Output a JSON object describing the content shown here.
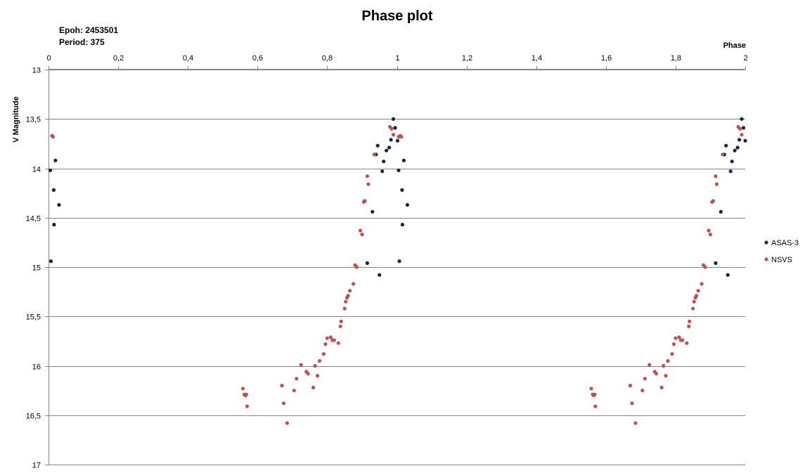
{
  "chart_data": {
    "type": "scatter",
    "title": "Phase plot",
    "annotations": [
      "Epoh: 2453501",
      "Period: 375"
    ],
    "xlabel": "Phase",
    "ylabel": "V Magnitude",
    "xlim": [
      0,
      2
    ],
    "ylim": [
      13,
      17
    ],
    "y_inverted": true,
    "x_axis_position": "top",
    "x_ticks": [
      0,
      0.2,
      0.4,
      0.6,
      0.8,
      1,
      1.2,
      1.4,
      1.6,
      1.8,
      2
    ],
    "x_tick_labels": [
      "0",
      "0,2",
      "0,4",
      "0,6",
      "0,8",
      "1",
      "1,2",
      "1,4",
      "1,6",
      "1,8",
      "2"
    ],
    "y_ticks": [
      13,
      13.5,
      14,
      14.5,
      15,
      15.5,
      16,
      16.5,
      17
    ],
    "y_tick_labels": [
      "13",
      "13,5",
      "14",
      "14,5",
      "15",
      "15,5",
      "16",
      "16,5",
      "17"
    ],
    "grid": "horizontal",
    "legend_position": "right",
    "series": [
      {
        "name": "ASAS-3",
        "color": "#0f2346",
        "points": [
          [
            0.005,
            14.02
          ],
          [
            0.007,
            14.94
          ],
          [
            0.015,
            14.22
          ],
          [
            0.016,
            14.57
          ],
          [
            0.02,
            13.92
          ],
          [
            0.03,
            14.37
          ],
          [
            0.915,
            14.96
          ],
          [
            0.93,
            14.44
          ],
          [
            0.94,
            13.86
          ],
          [
            0.945,
            13.77
          ],
          [
            0.95,
            15.08
          ],
          [
            0.958,
            14.03
          ],
          [
            0.962,
            13.93
          ],
          [
            0.97,
            13.82
          ],
          [
            0.978,
            13.79
          ],
          [
            0.983,
            13.71
          ],
          [
            0.99,
            13.5
          ],
          [
            0.995,
            13.59
          ],
          [
            1.002,
            13.72
          ],
          [
            1.005,
            14.02
          ],
          [
            1.007,
            14.94
          ],
          [
            1.015,
            14.22
          ],
          [
            1.016,
            14.57
          ],
          [
            1.02,
            13.92
          ],
          [
            1.03,
            14.37
          ],
          [
            1.915,
            14.96
          ],
          [
            1.93,
            14.44
          ],
          [
            1.94,
            13.86
          ],
          [
            1.945,
            13.77
          ],
          [
            1.95,
            15.08
          ],
          [
            1.958,
            14.03
          ],
          [
            1.962,
            13.93
          ],
          [
            1.97,
            13.82
          ],
          [
            1.978,
            13.79
          ],
          [
            1.983,
            13.71
          ],
          [
            1.99,
            13.5
          ],
          [
            1.995,
            13.59
          ],
          [
            2.0,
            13.72
          ]
        ]
      },
      {
        "name": "NSVS",
        "color": "#c0504d",
        "points": [
          [
            0.01,
            13.67
          ],
          [
            0.013,
            13.68
          ],
          [
            0.558,
            16.23
          ],
          [
            0.562,
            16.29
          ],
          [
            0.565,
            16.3
          ],
          [
            0.568,
            16.29
          ],
          [
            0.57,
            16.41
          ],
          [
            0.67,
            16.2
          ],
          [
            0.675,
            16.38
          ],
          [
            0.685,
            16.58
          ],
          [
            0.705,
            16.25
          ],
          [
            0.712,
            16.13
          ],
          [
            0.725,
            15.99
          ],
          [
            0.74,
            16.06
          ],
          [
            0.745,
            16.08
          ],
          [
            0.76,
            16.22
          ],
          [
            0.765,
            16.0
          ],
          [
            0.772,
            16.1
          ],
          [
            0.778,
            15.95
          ],
          [
            0.79,
            15.88
          ],
          [
            0.795,
            15.78
          ],
          [
            0.8,
            15.72
          ],
          [
            0.81,
            15.71
          ],
          [
            0.815,
            15.74
          ],
          [
            0.82,
            15.74
          ],
          [
            0.832,
            15.77
          ],
          [
            0.838,
            15.6
          ],
          [
            0.84,
            15.55
          ],
          [
            0.85,
            15.42
          ],
          [
            0.853,
            15.35
          ],
          [
            0.857,
            15.31
          ],
          [
            0.86,
            15.29
          ],
          [
            0.865,
            15.24
          ],
          [
            0.875,
            15.17
          ],
          [
            0.88,
            14.98
          ],
          [
            0.885,
            15.0
          ],
          [
            0.895,
            14.63
          ],
          [
            0.9,
            14.67
          ],
          [
            0.905,
            14.34
          ],
          [
            0.908,
            14.33
          ],
          [
            0.915,
            14.08
          ],
          [
            0.918,
            14.16
          ],
          [
            0.935,
            13.86
          ],
          [
            0.98,
            13.58
          ],
          [
            0.985,
            13.6
          ],
          [
            0.99,
            13.66
          ],
          [
            1.005,
            13.68
          ],
          [
            1.01,
            13.67
          ],
          [
            1.013,
            13.68
          ],
          [
            1.558,
            16.23
          ],
          [
            1.562,
            16.29
          ],
          [
            1.565,
            16.3
          ],
          [
            1.568,
            16.29
          ],
          [
            1.57,
            16.41
          ],
          [
            1.67,
            16.2
          ],
          [
            1.675,
            16.38
          ],
          [
            1.685,
            16.58
          ],
          [
            1.705,
            16.25
          ],
          [
            1.712,
            16.13
          ],
          [
            1.725,
            15.99
          ],
          [
            1.74,
            16.06
          ],
          [
            1.745,
            16.08
          ],
          [
            1.76,
            16.22
          ],
          [
            1.765,
            16.0
          ],
          [
            1.772,
            16.1
          ],
          [
            1.778,
            15.95
          ],
          [
            1.79,
            15.88
          ],
          [
            1.795,
            15.78
          ],
          [
            1.8,
            15.72
          ],
          [
            1.81,
            15.71
          ],
          [
            1.815,
            15.74
          ],
          [
            1.82,
            15.74
          ],
          [
            1.832,
            15.77
          ],
          [
            1.838,
            15.6
          ],
          [
            1.84,
            15.55
          ],
          [
            1.85,
            15.42
          ],
          [
            1.853,
            15.35
          ],
          [
            1.857,
            15.31
          ],
          [
            1.86,
            15.29
          ],
          [
            1.865,
            15.24
          ],
          [
            1.875,
            15.17
          ],
          [
            1.88,
            14.98
          ],
          [
            1.885,
            15.0
          ],
          [
            1.895,
            14.63
          ],
          [
            1.9,
            14.67
          ],
          [
            1.905,
            14.34
          ],
          [
            1.908,
            14.33
          ],
          [
            1.915,
            14.08
          ],
          [
            1.918,
            14.16
          ],
          [
            1.935,
            13.86
          ],
          [
            1.98,
            13.58
          ],
          [
            1.985,
            13.6
          ],
          [
            1.99,
            13.66
          ]
        ]
      }
    ]
  }
}
